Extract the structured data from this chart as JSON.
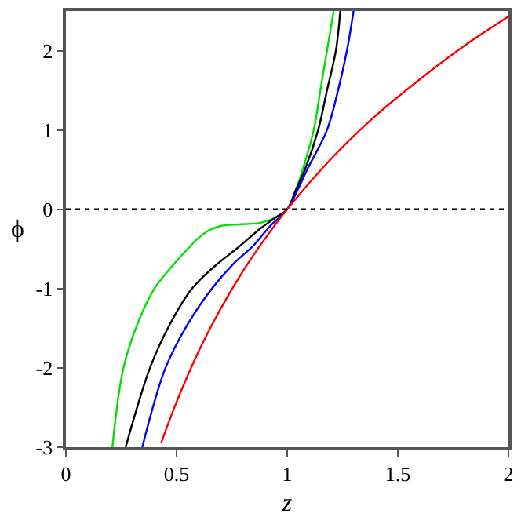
{
  "chart_data": {
    "type": "line",
    "xlabel": "z",
    "ylabel": "ϕ",
    "xlim": [
      0,
      2
    ],
    "ylim": [
      -3,
      2.5
    ],
    "xticks": [
      0,
      0.5,
      1,
      1.5,
      2
    ],
    "yticks": [
      -3,
      -2,
      -1,
      0,
      1,
      2
    ],
    "line_style": "solid",
    "marker": "none",
    "ref_lines": [
      {
        "axis": "y",
        "value": 0,
        "color": "#000000",
        "line_style": "dotted"
      }
    ],
    "series": [
      {
        "color": "#00e000",
        "x": [
          0.21,
          0.26,
          0.33,
          0.4,
          0.47,
          0.55,
          0.6,
          0.65,
          0.7,
          0.78,
          0.88,
          0.95,
          1.0,
          1.04,
          1.07,
          1.12,
          1.15,
          1.18,
          1.21
        ],
        "values": [
          -3,
          -2,
          -1.4,
          -1,
          -0.75,
          -0.5,
          -0.36,
          -0.26,
          -0.21,
          -0.19,
          -0.17,
          -0.1,
          0,
          0.25,
          0.5,
          1,
          1.5,
          2,
          2.5
        ]
      },
      {
        "color": "#000000",
        "x": [
          0.27,
          0.38,
          0.47,
          0.57,
          0.68,
          0.77,
          0.88,
          0.95,
          1.0,
          1.04,
          1.08,
          1.14,
          1.18,
          1.22,
          1.24
        ],
        "values": [
          -3,
          -2,
          -1.45,
          -1,
          -0.7,
          -0.5,
          -0.24,
          -0.1,
          0,
          0.25,
          0.5,
          1,
          1.5,
          2,
          2.5
        ]
      },
      {
        "color": "#0000ff",
        "x": [
          0.345,
          0.45,
          0.55,
          0.66,
          0.76,
          0.85,
          0.92,
          1.0,
          1.05,
          1.09,
          1.18,
          1.23,
          1.27,
          1.3
        ],
        "values": [
          -3,
          -2,
          -1.45,
          -1,
          -0.68,
          -0.45,
          -0.22,
          0,
          0.26,
          0.5,
          1,
          1.5,
          2,
          2.5
        ]
      },
      {
        "color": "#ff0000",
        "x": [
          0.43,
          0.5,
          0.6,
          0.7,
          0.8,
          0.9,
          1.0,
          1.2,
          1.4,
          1.6,
          1.8,
          2.0
        ],
        "values": [
          -2.95,
          -2.43,
          -1.79,
          -1.25,
          -0.78,
          -0.37,
          0,
          0.64,
          1.18,
          1.64,
          2.06,
          2.43
        ]
      }
    ]
  }
}
